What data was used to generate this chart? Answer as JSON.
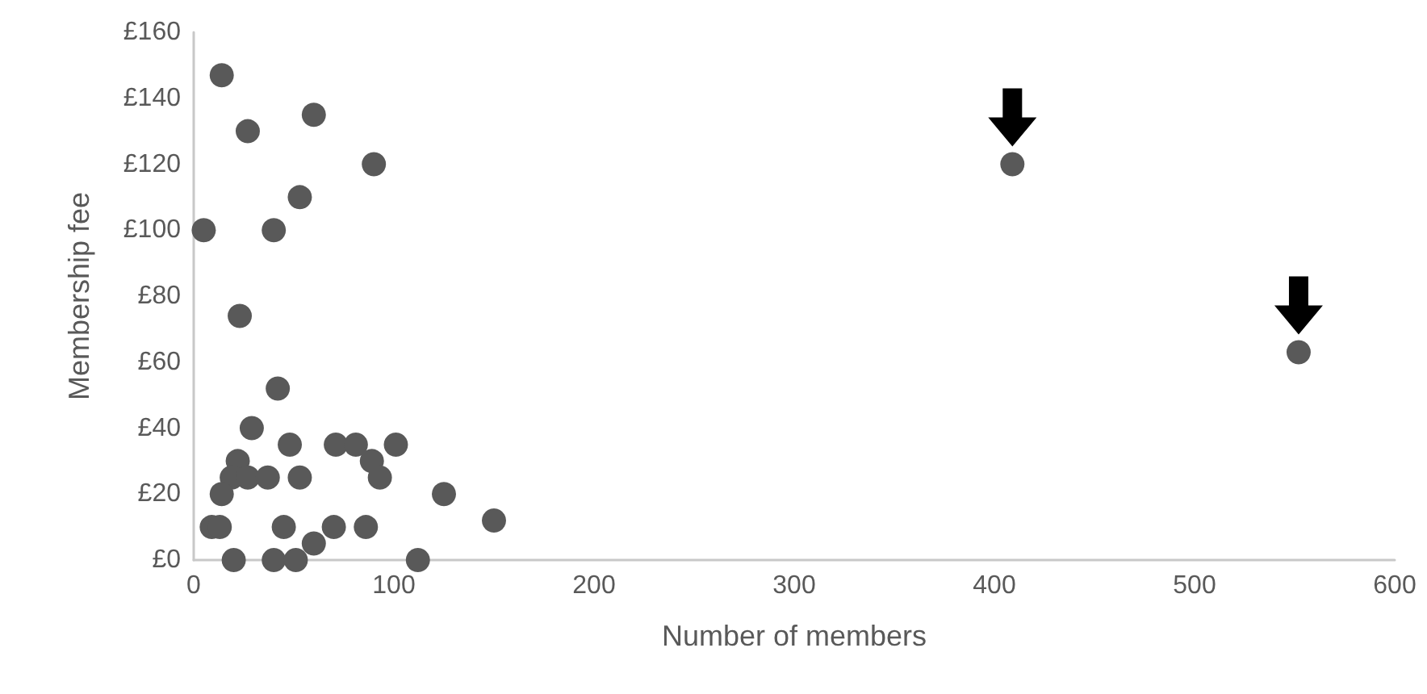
{
  "chart_data": {
    "type": "scatter",
    "xlabel": "Number of members",
    "ylabel": "Membership fee",
    "x": [
      14,
      27,
      60,
      90,
      53,
      5,
      40,
      23,
      42,
      29,
      48,
      71,
      81,
      101,
      22,
      89,
      19,
      27,
      37,
      53,
      93,
      14,
      125,
      9,
      13,
      45,
      70,
      86,
      150,
      60,
      20,
      40,
      51,
      112,
      409,
      552
    ],
    "series": [
      {
        "color": "#595959",
        "values": [
          147,
          130,
          135,
          120,
          110,
          100,
          100,
          74,
          52,
          40,
          35,
          35,
          35,
          35,
          30,
          30,
          25,
          25,
          25,
          25,
          25,
          20,
          20,
          10,
          10,
          10,
          10,
          10,
          12,
          5,
          0,
          0,
          0,
          0,
          120,
          63
        ]
      }
    ],
    "xlim": [
      0,
      600
    ],
    "xticks": [
      0,
      100,
      200,
      300,
      400,
      500,
      600
    ],
    "ylim": [
      0,
      160
    ],
    "yticks": [
      {
        "value": 0,
        "label": "£0"
      },
      {
        "value": 20,
        "label": "£20"
      },
      {
        "value": 40,
        "label": "£40"
      },
      {
        "value": 60,
        "label": "£60"
      },
      {
        "value": 80,
        "label": "£80"
      },
      {
        "value": 100,
        "label": "£100"
      },
      {
        "value": 120,
        "label": "£120"
      },
      {
        "value": 140,
        "label": "£140"
      },
      {
        "value": 160,
        "label": "£160"
      }
    ],
    "grid": false,
    "marker": "circle"
  }
}
